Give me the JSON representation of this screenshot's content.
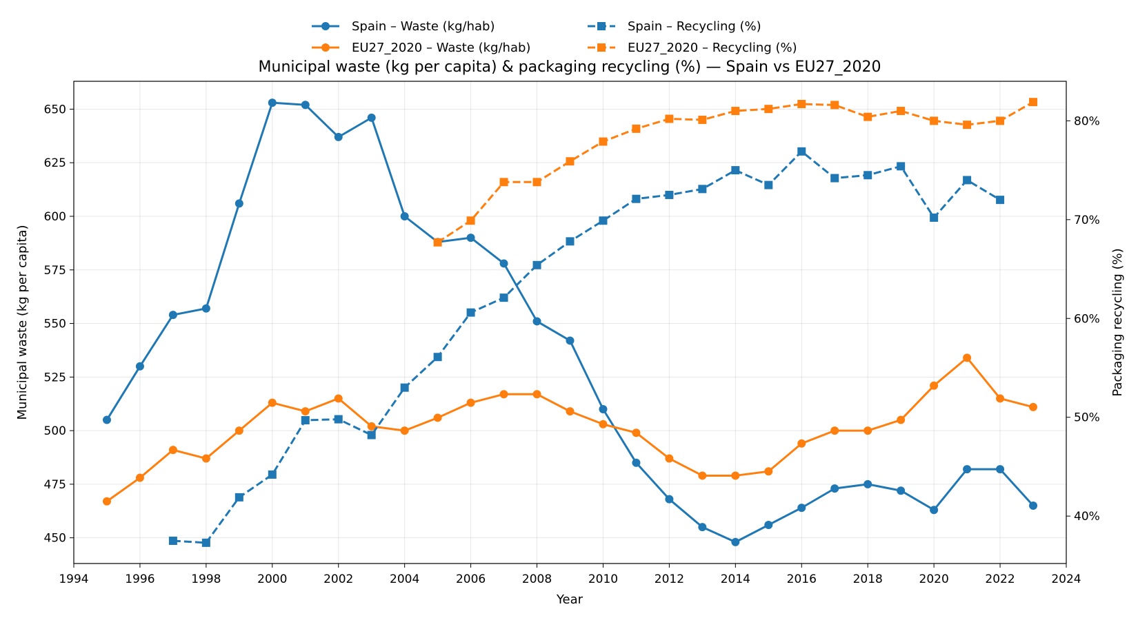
{
  "chart_data": {
    "type": "line",
    "title": "Municipal waste (kg per capita) & packaging recycling (%) — Spain vs EU27_2020",
    "xlabel": "Year",
    "ylabel_left": "Municipal waste (kg per capita)",
    "ylabel_right": "Packaging recycling (%)",
    "xlim": [
      1994,
      2024
    ],
    "ylim_left": [
      438,
      663
    ],
    "ylim_right": [
      35.2,
      84.0
    ],
    "x_ticks": [
      "1994",
      "1996",
      "1998",
      "2000",
      "2002",
      "2004",
      "2006",
      "2008",
      "2010",
      "2012",
      "2014",
      "2016",
      "2018",
      "2020",
      "2022",
      "2024"
    ],
    "y_left_ticks": [
      "450",
      "475",
      "500",
      "525",
      "550",
      "575",
      "600",
      "625",
      "650"
    ],
    "y_right_ticks": [
      "40%",
      "50%",
      "60%",
      "70%",
      "80%"
    ],
    "grid": true,
    "legend_position": "top-center",
    "series": [
      {
        "name": "Spain – Waste (kg/hab)",
        "axis": "left",
        "color": "#1f77b4",
        "marker": "circle",
        "dash": "solid",
        "x": [
          1995,
          1996,
          1997,
          1998,
          1999,
          2000,
          2001,
          2002,
          2003,
          2004,
          2005,
          2006,
          2007,
          2008,
          2009,
          2010,
          2011,
          2012,
          2013,
          2014,
          2015,
          2016,
          2017,
          2018,
          2019,
          2020,
          2021,
          2022,
          2023
        ],
        "y": [
          505,
          530,
          554,
          557,
          606,
          653,
          652,
          637,
          646,
          600,
          588,
          590,
          578,
          551,
          542,
          510,
          485,
          468,
          455,
          448,
          456,
          464,
          473,
          475,
          472,
          463,
          482,
          482,
          465
        ]
      },
      {
        "name": "EU27_2020 – Waste (kg/hab)",
        "axis": "left",
        "color": "#ff7f0e",
        "marker": "circle",
        "dash": "solid",
        "x": [
          1995,
          1996,
          1997,
          1998,
          1999,
          2000,
          2001,
          2002,
          2003,
          2004,
          2005,
          2006,
          2007,
          2008,
          2009,
          2010,
          2011,
          2012,
          2013,
          2014,
          2015,
          2016,
          2017,
          2018,
          2019,
          2020,
          2021,
          2022,
          2023
        ],
        "y": [
          467,
          478,
          491,
          487,
          500,
          513,
          509,
          515,
          502,
          500,
          506,
          513,
          517,
          517,
          509,
          503,
          499,
          487,
          479,
          479,
          481,
          494,
          500,
          500,
          505,
          521,
          534,
          515,
          511
        ]
      },
      {
        "name": "Spain – Recycling (%)",
        "axis": "right",
        "color": "#1f77b4",
        "marker": "square",
        "dash": "dashed",
        "x": [
          1997,
          1998,
          1999,
          2000,
          2001,
          2002,
          2003,
          2004,
          2005,
          2006,
          2007,
          2008,
          2009,
          2010,
          2011,
          2012,
          2013,
          2014,
          2015,
          2016,
          2017,
          2018,
          2019,
          2020,
          2021,
          2022
        ],
        "y": [
          37.5,
          37.3,
          41.9,
          44.2,
          49.7,
          49.8,
          48.2,
          53.0,
          56.1,
          60.6,
          62.1,
          65.4,
          67.8,
          69.9,
          72.1,
          72.5,
          73.1,
          75.0,
          73.5,
          76.9,
          74.2,
          74.5,
          75.4,
          70.2,
          74.0,
          72.0
        ]
      },
      {
        "name": "EU27_2020 – Recycling (%)",
        "axis": "right",
        "color": "#ff7f0e",
        "marker": "square",
        "dash": "dashed",
        "x": [
          2005,
          2006,
          2007,
          2008,
          2009,
          2010,
          2011,
          2012,
          2013,
          2014,
          2015,
          2016,
          2017,
          2018,
          2019,
          2020,
          2021,
          2022,
          2023
        ],
        "y": [
          67.7,
          69.9,
          73.8,
          73.8,
          75.9,
          77.9,
          79.2,
          80.2,
          80.1,
          81.0,
          81.2,
          81.7,
          81.6,
          80.4,
          81.0,
          80.0,
          79.6,
          80.0,
          81.9
        ]
      }
    ]
  }
}
